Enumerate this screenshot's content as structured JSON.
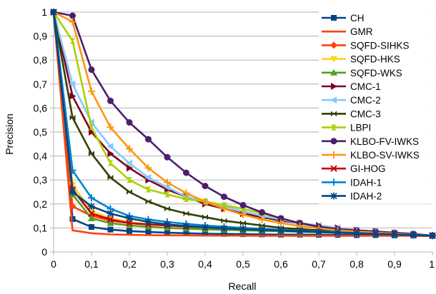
{
  "chart_data": {
    "type": "line",
    "title": "",
    "xlabel": "Recall",
    "ylabel": "Precision",
    "xlim": [
      0,
      1
    ],
    "ylim": [
      0,
      1
    ],
    "xticks": [
      0,
      0.1,
      0.2,
      0.3,
      0.4,
      0.5,
      0.6,
      0.7,
      0.8,
      0.9,
      1
    ],
    "yticks": [
      0,
      0.1,
      0.2,
      0.3,
      0.4,
      0.5,
      0.6,
      0.7,
      0.8,
      0.9,
      1
    ],
    "xtick_labels": [
      "0",
      "0,1",
      "0,2",
      "0,3",
      "0,4",
      "0,5",
      "0,6",
      "0,7",
      "0,8",
      "0,9",
      "1"
    ],
    "ytick_labels": [
      "0",
      "0,1",
      "0,2",
      "0,3",
      "0,4",
      "0,5",
      "0,6",
      "0,7",
      "0,8",
      "0,9",
      "1"
    ],
    "grid": "horizontal",
    "legend_position": "right",
    "x": [
      0,
      0.05,
      0.1,
      0.15,
      0.2,
      0.25,
      0.3,
      0.35,
      0.4,
      0.45,
      0.5,
      0.55,
      0.6,
      0.65,
      0.7,
      0.75,
      0.8,
      0.85,
      0.9,
      0.95,
      1
    ],
    "series": [
      {
        "name": "CH",
        "color": "#004586",
        "marker": "square",
        "values": [
          1,
          0.137,
          0.104,
          0.093,
          0.087,
          0.083,
          0.08,
          0.078,
          0.076,
          0.075,
          0.074,
          0.073,
          0.072,
          0.072,
          0.071,
          0.071,
          0.07,
          0.07,
          0.069,
          0.069,
          0.068
        ]
      },
      {
        "name": "GMR",
        "color": "#ff420e",
        "marker": "none",
        "values": [
          1,
          0.09,
          0.078,
          0.073,
          0.071,
          0.07,
          0.069,
          0.069,
          0.068,
          0.068,
          0.068,
          0.067,
          0.067,
          0.067,
          0.067,
          0.067,
          0.067,
          0.067,
          0.067,
          0.067,
          0.066
        ]
      },
      {
        "name": "SQFD-SIHKS",
        "color": "#ff420e",
        "marker": "diamond",
        "values": [
          1,
          0.19,
          0.15,
          0.13,
          0.12,
          0.115,
          0.11,
          0.105,
          0.1,
          0.097,
          0.094,
          0.091,
          0.089,
          0.086,
          0.084,
          0.082,
          0.08,
          0.078,
          0.075,
          0.072,
          0.068
        ]
      },
      {
        "name": "SQFD-HKS",
        "color": "#ffd320",
        "marker": "triangle-down",
        "values": [
          1,
          0.28,
          0.17,
          0.14,
          0.125,
          0.115,
          0.11,
          0.105,
          0.1,
          0.097,
          0.094,
          0.092,
          0.09,
          0.088,
          0.086,
          0.083,
          0.08,
          0.077,
          0.074,
          0.071,
          0.068
        ]
      },
      {
        "name": "SQFD-WKS",
        "color": "#579d1c",
        "marker": "triangle-up",
        "values": [
          1,
          0.24,
          0.14,
          0.12,
          0.11,
          0.105,
          0.1,
          0.097,
          0.094,
          0.092,
          0.09,
          0.088,
          0.086,
          0.084,
          0.082,
          0.08,
          0.078,
          0.076,
          0.074,
          0.071,
          0.068
        ]
      },
      {
        "name": "CMC-1",
        "color": "#7e0021",
        "marker": "triangle-right",
        "values": [
          1,
          0.65,
          0.5,
          0.41,
          0.35,
          0.3,
          0.26,
          0.23,
          0.2,
          0.18,
          0.16,
          0.145,
          0.13,
          0.12,
          0.11,
          0.1,
          0.09,
          0.085,
          0.078,
          0.073,
          0.068
        ]
      },
      {
        "name": "CMC-2",
        "color": "#83caff",
        "marker": "triangle-left",
        "values": [
          1,
          0.7,
          0.54,
          0.44,
          0.37,
          0.31,
          0.27,
          0.23,
          0.21,
          0.19,
          0.17,
          0.15,
          0.135,
          0.12,
          0.11,
          0.1,
          0.09,
          0.083,
          0.077,
          0.072,
          0.068
        ]
      },
      {
        "name": "CMC-3",
        "color": "#314004",
        "marker": "bowtie",
        "values": [
          1,
          0.56,
          0.41,
          0.31,
          0.25,
          0.21,
          0.18,
          0.16,
          0.145,
          0.13,
          0.12,
          0.11,
          0.1,
          0.095,
          0.09,
          0.085,
          0.08,
          0.076,
          0.073,
          0.07,
          0.068
        ]
      },
      {
        "name": "LBPI",
        "color": "#aecf00",
        "marker": "hourglass",
        "values": [
          1,
          0.88,
          0.52,
          0.37,
          0.3,
          0.26,
          0.24,
          0.22,
          0.21,
          0.195,
          0.18,
          0.16,
          0.14,
          0.12,
          0.105,
          0.095,
          0.088,
          0.082,
          0.077,
          0.072,
          0.068
        ]
      },
      {
        "name": "KLBO-FV-IWKS",
        "color": "#4b1f6f",
        "marker": "circle",
        "values": [
          1,
          0.985,
          0.76,
          0.63,
          0.54,
          0.47,
          0.395,
          0.33,
          0.275,
          0.23,
          0.195,
          0.165,
          0.14,
          0.12,
          0.105,
          0.095,
          0.09,
          0.085,
          0.08,
          0.075,
          0.068
        ]
      },
      {
        "name": "KLBO-SV-IWKS",
        "color": "#ff950e",
        "marker": "plus",
        "values": [
          1,
          0.96,
          0.67,
          0.52,
          0.43,
          0.35,
          0.29,
          0.245,
          0.21,
          0.18,
          0.155,
          0.135,
          0.12,
          0.108,
          0.098,
          0.09,
          0.085,
          0.08,
          0.076,
          0.072,
          0.068
        ]
      },
      {
        "name": "GI-HOG",
        "color": "#c5000b",
        "marker": "x",
        "values": [
          1,
          0.26,
          0.16,
          0.135,
          0.12,
          0.115,
          0.11,
          0.106,
          0.102,
          0.098,
          0.095,
          0.092,
          0.089,
          0.086,
          0.083,
          0.081,
          0.078,
          0.075,
          0.073,
          0.07,
          0.068
        ]
      },
      {
        "name": "IDAH-1",
        "color": "#0084d1",
        "marker": "plus",
        "values": [
          1,
          0.34,
          0.225,
          0.18,
          0.15,
          0.135,
          0.125,
          0.117,
          0.11,
          0.105,
          0.1,
          0.096,
          0.092,
          0.088,
          0.085,
          0.082,
          0.079,
          0.076,
          0.073,
          0.071,
          0.068
        ]
      },
      {
        "name": "IDAH-2",
        "color": "#004586",
        "marker": "star",
        "values": [
          1,
          0.25,
          0.19,
          0.16,
          0.14,
          0.125,
          0.115,
          0.108,
          0.103,
          0.098,
          0.095,
          0.092,
          0.089,
          0.086,
          0.083,
          0.08,
          0.078,
          0.075,
          0.073,
          0.07,
          0.068
        ]
      }
    ]
  }
}
